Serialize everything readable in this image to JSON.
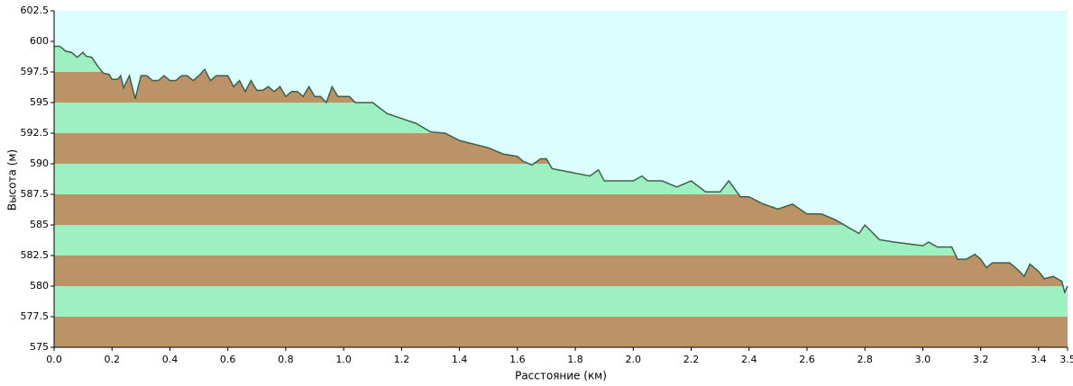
{
  "chart_data": {
    "type": "area",
    "xlabel": "Расстояние  (км)",
    "ylabel": "Высота (м)",
    "x": [
      0.0,
      0.02,
      0.04,
      0.06,
      0.08,
      0.1,
      0.11,
      0.13,
      0.15,
      0.17,
      0.19,
      0.2,
      0.22,
      0.23,
      0.24,
      0.26,
      0.28,
      0.3,
      0.32,
      0.34,
      0.36,
      0.38,
      0.4,
      0.42,
      0.44,
      0.46,
      0.48,
      0.5,
      0.52,
      0.54,
      0.56,
      0.6,
      0.62,
      0.64,
      0.66,
      0.68,
      0.7,
      0.72,
      0.74,
      0.76,
      0.78,
      0.8,
      0.82,
      0.84,
      0.86,
      0.88,
      0.9,
      0.92,
      0.94,
      0.96,
      0.98,
      1.02,
      1.04,
      1.1,
      1.15,
      1.2,
      1.25,
      1.3,
      1.35,
      1.4,
      1.45,
      1.5,
      1.55,
      1.6,
      1.62,
      1.65,
      1.68,
      1.7,
      1.72,
      1.85,
      1.88,
      1.9,
      2.0,
      2.03,
      2.05,
      2.1,
      2.15,
      2.2,
      2.25,
      2.3,
      2.33,
      2.37,
      2.4,
      2.45,
      2.5,
      2.55,
      2.6,
      2.65,
      2.7,
      2.75,
      2.78,
      2.8,
      2.85,
      2.9,
      3.0,
      3.02,
      3.05,
      3.1,
      3.12,
      3.15,
      3.18,
      3.2,
      3.22,
      3.24,
      3.3,
      3.33,
      3.35,
      3.37,
      3.4,
      3.42,
      3.45,
      3.48,
      3.49,
      3.5
    ],
    "series": [
      {
        "color": "#3f5f4a",
        "values": [
          599.6,
          599.6,
          599.2,
          599.1,
          598.7,
          599.1,
          598.8,
          598.7,
          598.0,
          597.4,
          597.3,
          596.9,
          596.9,
          597.2,
          596.2,
          597.2,
          595.3,
          597.2,
          597.2,
          596.8,
          596.8,
          597.2,
          596.8,
          596.8,
          597.2,
          597.2,
          596.8,
          597.2,
          597.7,
          596.8,
          597.2,
          597.2,
          596.3,
          596.8,
          595.9,
          596.8,
          596.0,
          596.0,
          596.3,
          595.9,
          596.3,
          595.5,
          595.9,
          595.9,
          595.5,
          596.3,
          595.5,
          595.5,
          595.0,
          596.3,
          595.5,
          595.5,
          595.0,
          595.0,
          594.1,
          593.7,
          593.3,
          592.6,
          592.5,
          591.9,
          591.6,
          591.3,
          590.8,
          590.6,
          590.2,
          589.9,
          590.4,
          590.4,
          589.6,
          589.0,
          589.5,
          588.6,
          588.6,
          589.0,
          588.6,
          588.6,
          588.1,
          588.6,
          587.7,
          587.7,
          588.6,
          587.3,
          587.3,
          586.7,
          586.3,
          586.7,
          585.9,
          585.9,
          585.4,
          584.7,
          584.3,
          585.0,
          583.8,
          583.6,
          583.3,
          583.6,
          583.2,
          583.2,
          582.2,
          582.2,
          582.6,
          582.2,
          581.5,
          581.9,
          581.9,
          581.3,
          580.8,
          581.8,
          581.2,
          580.6,
          580.8,
          580.4,
          579.5,
          580.0
        ]
      }
    ],
    "band_colors": [
      "#bb9366",
      "#9df0bf"
    ],
    "background": "#dcfefe",
    "xlim": [
      0,
      3.5
    ],
    "xticks": [
      {
        "value": 0,
        "label": "0.0"
      },
      0.2,
      0.4,
      0.6,
      0.8,
      {
        "value": 1,
        "label": "1.0"
      },
      1.2,
      1.4,
      1.6,
      1.8,
      {
        "value": 2,
        "label": "2.0"
      },
      2.2,
      2.4,
      2.6,
      2.8,
      {
        "value": 3,
        "label": "3.0"
      },
      3.2,
      3.4,
      3.5
    ],
    "ylim": [
      575,
      602.5
    ],
    "yticks": [
      575,
      577.5,
      580,
      582.5,
      585,
      587.5,
      590,
      592.5,
      595,
      597.5,
      600,
      602.5
    ]
  }
}
